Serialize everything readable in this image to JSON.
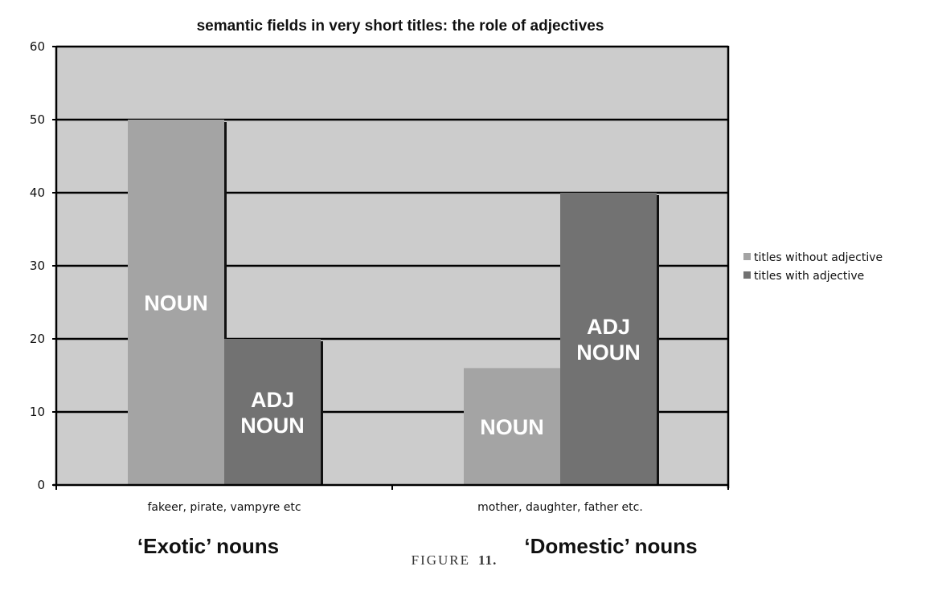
{
  "chart_data": {
    "type": "bar",
    "title": "semantic fields in very short titles: the role of adjectives",
    "categories": [
      "fakeer, pirate, vampyre etc",
      "mother, daughter, father etc."
    ],
    "series": [
      {
        "name": "titles without adjective",
        "values": [
          50,
          16
        ],
        "color": "#a4a4a4",
        "bar_label": "NOUN"
      },
      {
        "name": "titles with adjective",
        "values": [
          20,
          40
        ],
        "color": "#727272",
        "bar_label": "ADJ NOUN"
      }
    ],
    "ylim": [
      0,
      60
    ],
    "yticks": [
      "0",
      "10",
      "20",
      "30",
      "40",
      "50",
      "60"
    ],
    "grid": true,
    "plot_background": "#cccccc",
    "legend_position": "right"
  },
  "group_labels": [
    "‘Exotic’ nouns",
    "‘Domestic’ nouns"
  ],
  "caption": {
    "text": "FIGURE",
    "number": "11."
  }
}
